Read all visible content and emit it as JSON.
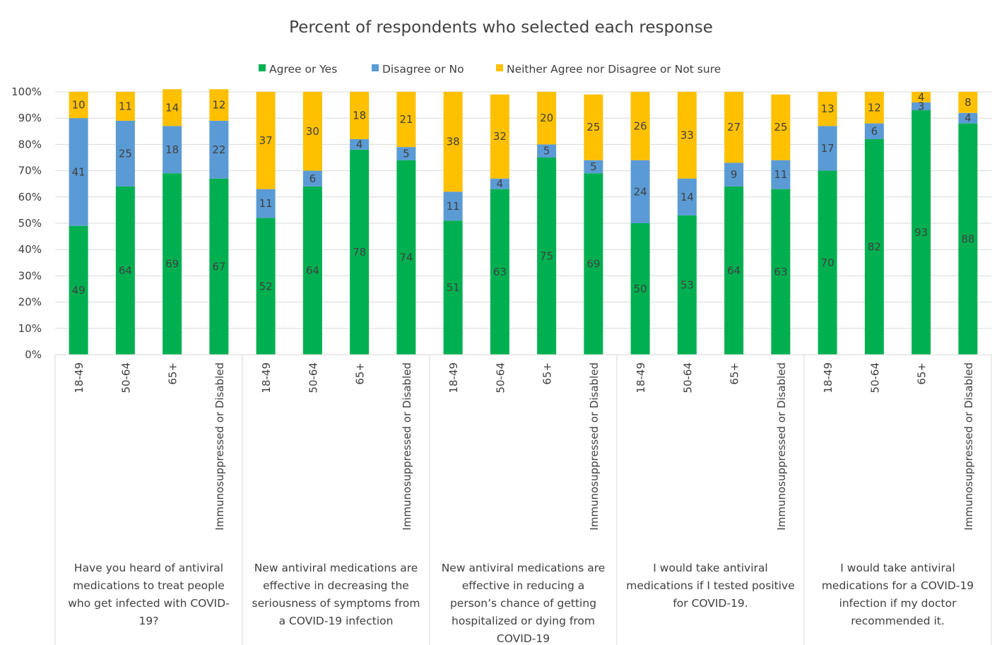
{
  "chart_data": {
    "type": "bar",
    "stacked": true,
    "percent": true,
    "title": "Percent of respondents who selected each response",
    "y_ticks": [
      "0%",
      "10%",
      "20%",
      "30%",
      "40%",
      "50%",
      "60%",
      "70%",
      "80%",
      "90%",
      "100%"
    ],
    "ylim": [
      0,
      100
    ],
    "grid": "horizontal",
    "legend_position": "top",
    "series": [
      {
        "name": "Agree or Yes",
        "color": "#00B050",
        "values": [
          49,
          64,
          69,
          67,
          52,
          64,
          78,
          74,
          51,
          63,
          75,
          69,
          50,
          53,
          64,
          63,
          70,
          82,
          93,
          88
        ],
        "labels": [
          "49",
          "64",
          "69",
          "67",
          "52",
          "64",
          "78",
          "74",
          "51",
          "63",
          "75",
          "69",
          "50",
          "53",
          "64",
          "63",
          "70",
          "82",
          "93",
          "88"
        ]
      },
      {
        "name": "Disagree or No",
        "color": "#5B9BD5",
        "values": [
          41,
          25,
          18,
          22,
          11,
          6,
          4,
          5,
          11,
          4,
          5,
          5,
          24,
          14,
          9,
          11,
          17,
          6,
          3,
          4
        ],
        "labels": [
          "41",
          "25",
          "18",
          "22",
          "11",
          "6",
          "4",
          "5",
          "11",
          "4",
          "5",
          "5",
          "24",
          "14",
          "9",
          "11",
          "17",
          "6",
          "3",
          "4"
        ]
      },
      {
        "name": "Neither Agree nor Disagree or Not sure",
        "color": "#FFC000",
        "values": [
          10,
          11,
          14,
          12,
          37,
          30,
          18,
          21,
          38,
          32,
          20,
          25,
          26,
          33,
          27,
          25,
          13,
          12,
          4,
          8
        ],
        "labels": [
          "10",
          "11",
          "14",
          "12",
          "37",
          "30",
          "18",
          "21",
          "38",
          "32",
          "20",
          "25",
          "26",
          "33",
          "27",
          "25",
          "13",
          "12",
          "4",
          "8"
        ]
      }
    ],
    "categories": [
      "18-49",
      "50-64",
      "65+",
      "Immunosuppressed or Disabled",
      "18-49",
      "50-64",
      "65+",
      "Immunosuppressed or Disabled",
      "18-49",
      "50-64",
      "65+",
      "Immunosuppressed or Disabled",
      "18-49",
      "50-64",
      "65+",
      "Immunosuppressed or Disabled",
      "18-49",
      "50-64",
      "65+",
      "Immunosuppressed or Disabled"
    ],
    "groups": [
      {
        "lines": [
          "Have you heard of antiviral",
          "medications to treat people",
          "who get infected with COVID-",
          "19?"
        ]
      },
      {
        "lines": [
          "New antiviral medications are",
          "effective in decreasing the",
          "seriousness of symptoms from",
          "a COVID-19 infection"
        ]
      },
      {
        "lines": [
          "New antiviral medications are",
          "effective in reducing a",
          "person’s chance of getting",
          "hospitalized or dying from",
          "COVID-19"
        ]
      },
      {
        "lines": [
          "I would take antiviral",
          "medications if I tested positive",
          "for COVID-19."
        ]
      },
      {
        "lines": [
          "I would take antiviral",
          "medications for a COVID-19",
          "infection if my doctor",
          "recommended it."
        ]
      }
    ]
  }
}
